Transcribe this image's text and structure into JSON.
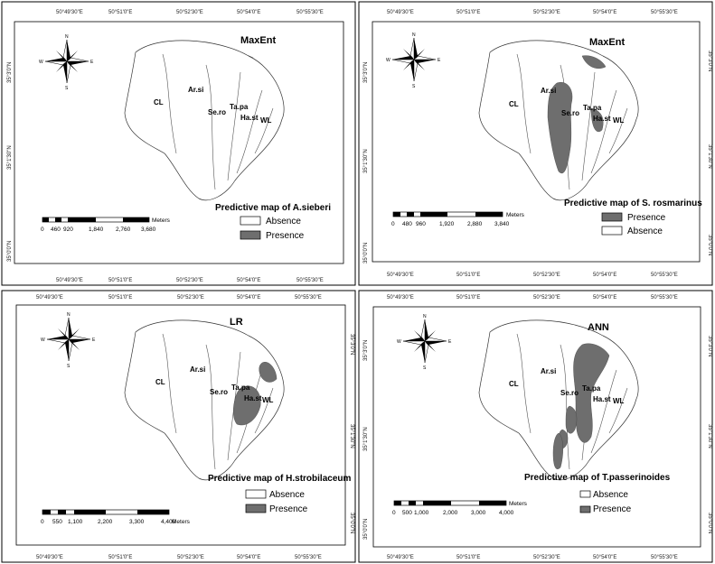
{
  "legend_swatches": {
    "absence": "#ffffff",
    "presence": "#6e6e6e"
  },
  "compass": {
    "n": "N",
    "e": "E",
    "s": "S",
    "w": "W"
  },
  "panels": [
    {
      "model": "MaxEnt",
      "title": "Predictive map of A.sieberi",
      "legend_order": [
        "Absence",
        "Presence"
      ],
      "zones": {
        "cl": "CL",
        "arsi": "Ar.si",
        "sero": "Se.ro",
        "tapa": "Ta.pa",
        "hast": "Ha.st",
        "wl": "WL"
      },
      "lon_ticks": [
        "50°49'30\"E",
        "50°51'0\"E",
        "50°52'30\"E",
        "50°54'0\"E",
        "50°55'30\"E"
      ],
      "lat_ticks": [
        "35°3'0\"N",
        "35°1'30\"N",
        "35°0'0\"N"
      ],
      "scale_labels": [
        "0",
        "460",
        "920",
        "1,840",
        "2,760",
        "3,680"
      ],
      "scale_unit": "Meters"
    },
    {
      "model": "MaxEnt",
      "title": "Predictive map of S. rosmarinus",
      "legend_order": [
        "Presence",
        "Absence"
      ],
      "zones": {
        "cl": "CL",
        "arsi": "Ar.si",
        "sero": "Se.ro",
        "tapa": "Ta.pa",
        "hast": "Ha.st",
        "wl": "WL"
      },
      "lon_ticks": [
        "50°49'30\"E",
        "50°51'0\"E",
        "50°52'30\"E",
        "50°54'0\"E",
        "50°55'30\"E"
      ],
      "lat_ticks": [
        "35°3'0\"N",
        "35°1'30\"N",
        "35°0'0\"N"
      ],
      "scale_labels": [
        "0",
        "480",
        "960",
        "1,920",
        "2,880",
        "3,840"
      ],
      "scale_unit": "Meters"
    },
    {
      "model": "LR",
      "title": "Predictive map of H.strobilaceum",
      "legend_order": [
        "Absence",
        "Presence"
      ],
      "zones": {
        "cl": "CL",
        "arsi": "Ar.si",
        "sero": "Se.ro",
        "tapa": "Ta.pa",
        "hast": "Ha.st",
        "wl": "WL"
      },
      "lon_ticks": [
        "50°49'30\"E",
        "50°51'0\"E",
        "50°52'30\"E",
        "50°54'0\"E",
        "50°55'30\"E"
      ],
      "lat_ticks": [
        "35°3'0\"N",
        "35°1'30\"N",
        "35°0'0\"N"
      ],
      "scale_labels": [
        "0",
        "550",
        "1,100",
        "2,200",
        "3,300",
        "4,400"
      ],
      "scale_unit": "Meters"
    },
    {
      "model": "ANN",
      "title": "Predictive map of T.passerinoides",
      "legend_order": [
        "Absence",
        "Presence"
      ],
      "zones": {
        "cl": "CL",
        "arsi": "Ar.si",
        "sero": "Se.ro",
        "tapa": "Ta.pa",
        "hast": "Ha.st",
        "wl": "WL"
      },
      "lon_ticks": [
        "50°49'30\"E",
        "50°51'0\"E",
        "50°52'30\"E",
        "50°54'0\"E",
        "50°55'30\"E"
      ],
      "lat_ticks": [
        "35°3'0\"N",
        "35°1'30\"N",
        "35°0'0\"N"
      ],
      "scale_labels": [
        "0",
        "500",
        "1,000",
        "2,000",
        "3,000",
        "4,000"
      ],
      "scale_unit": "Meters"
    }
  ]
}
